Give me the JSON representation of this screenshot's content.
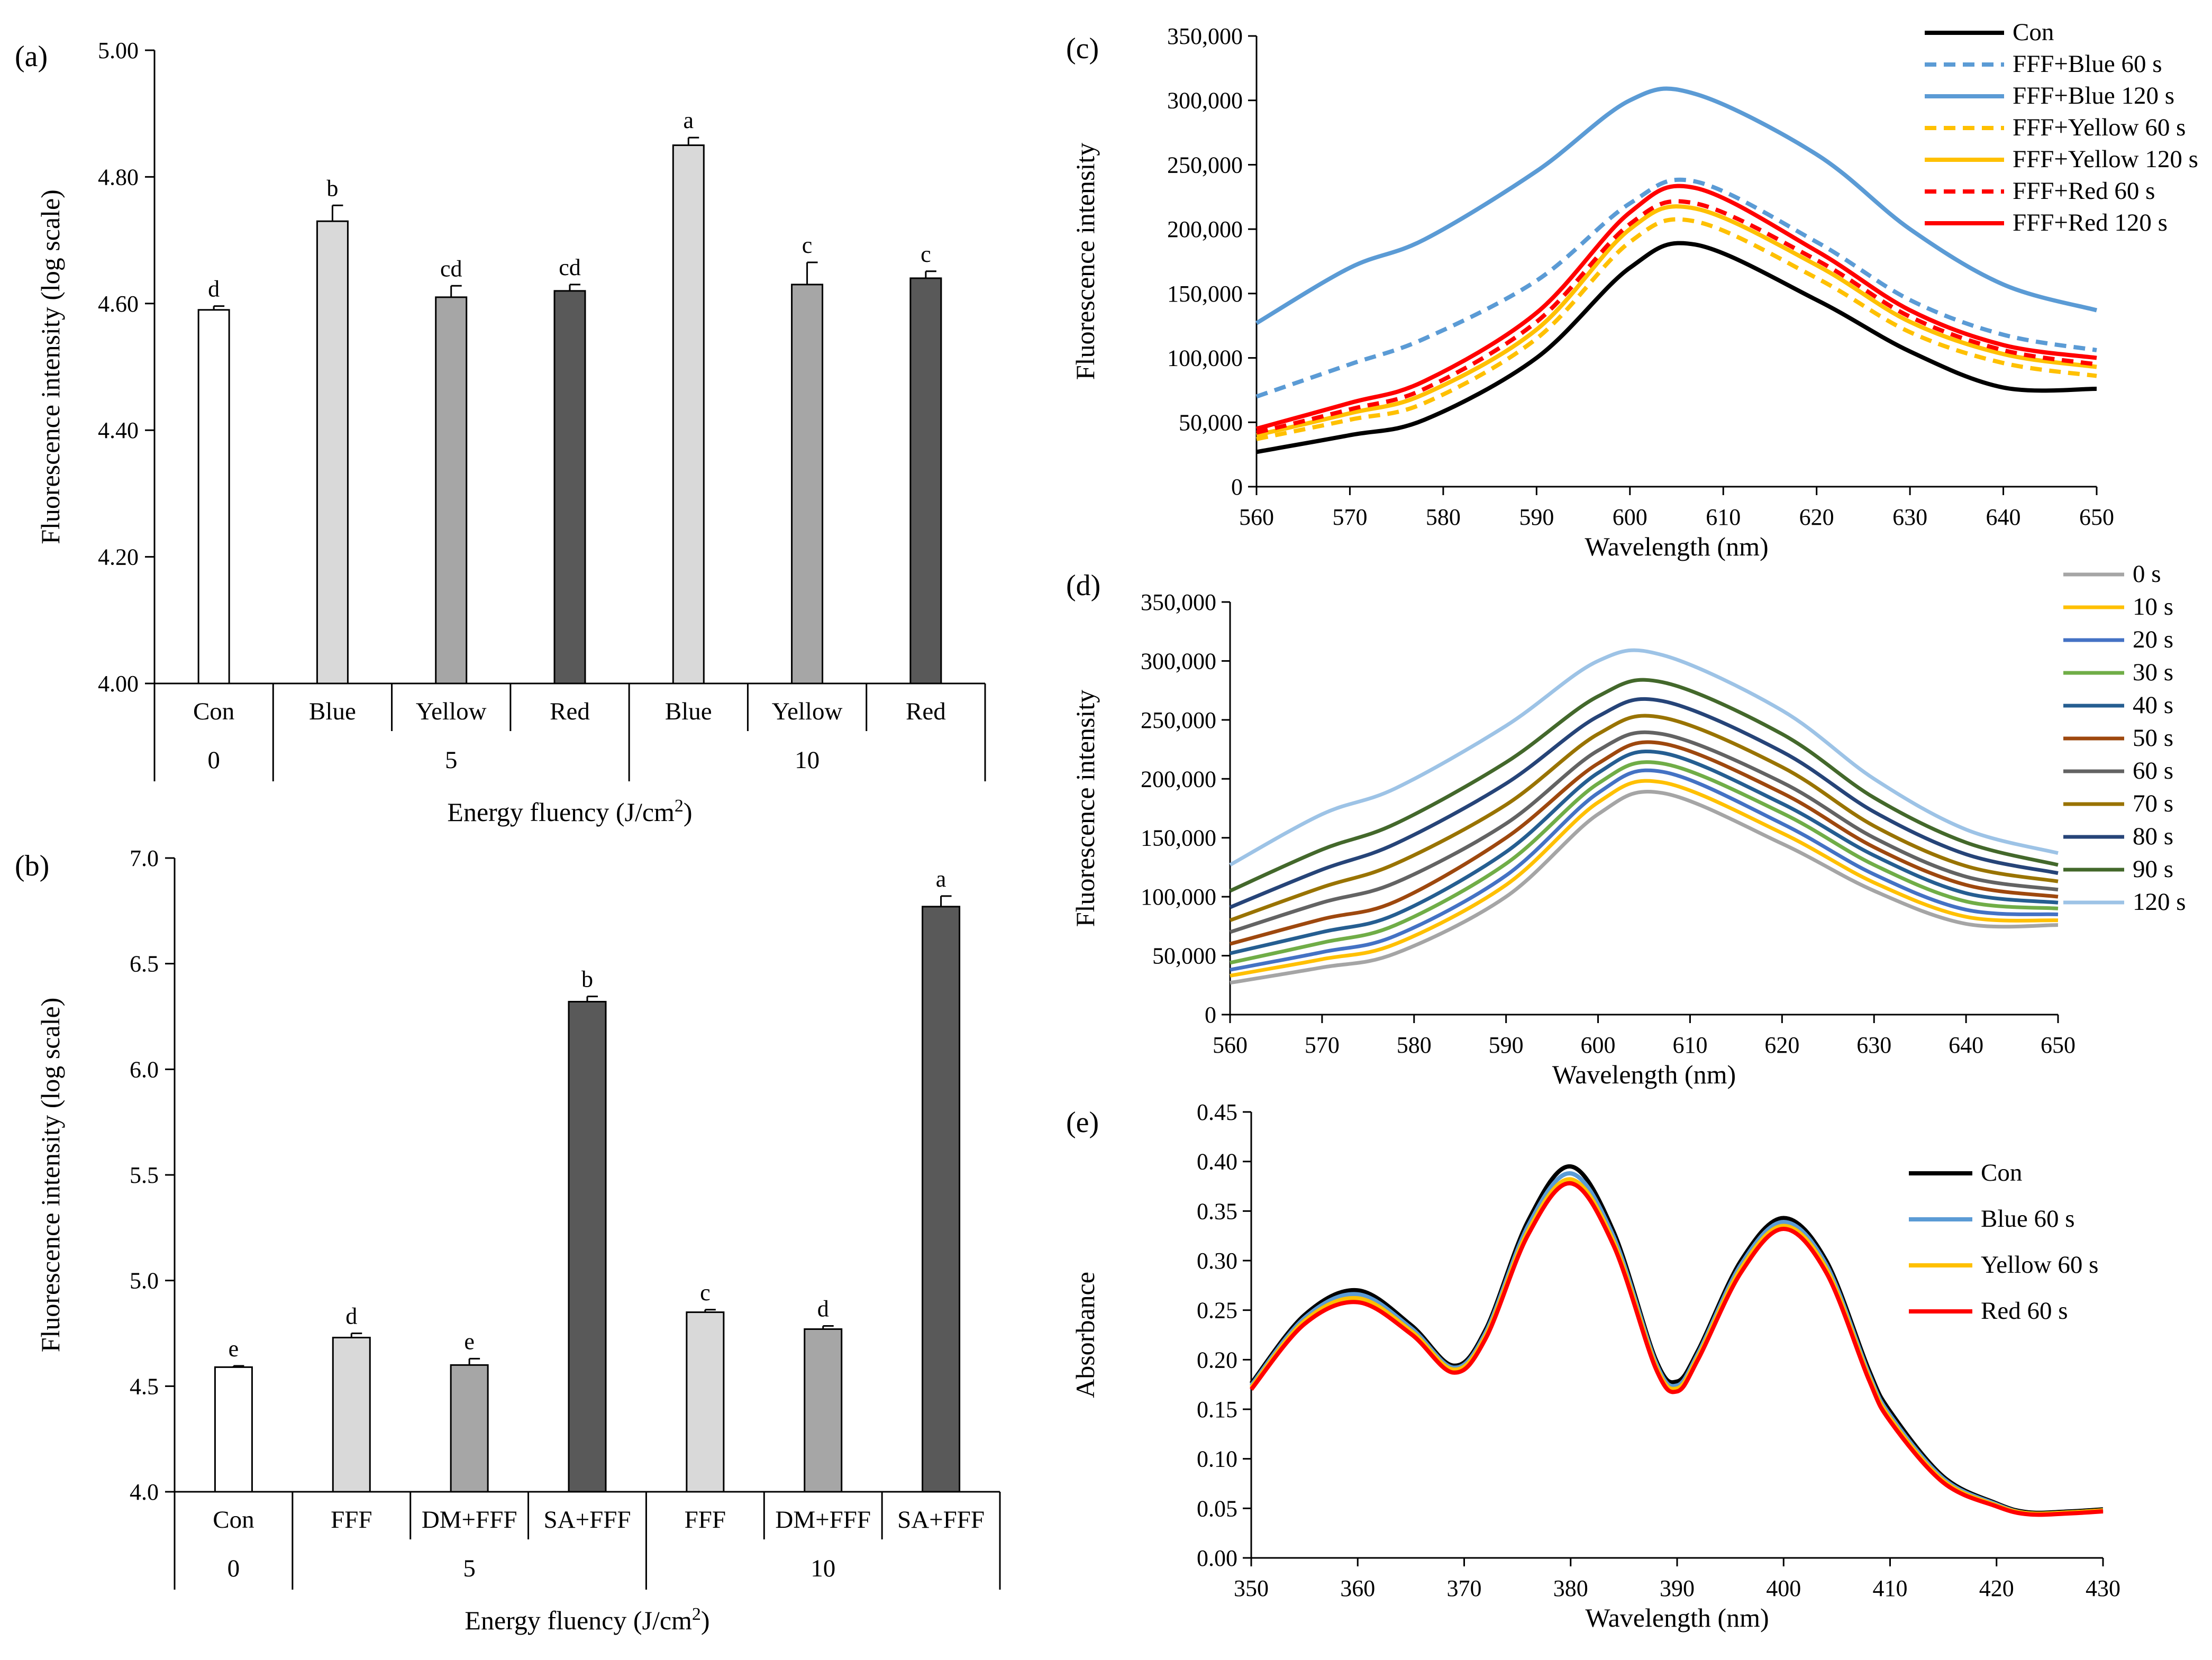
{
  "chart_data": [
    {
      "panel": "(a)",
      "type": "bar",
      "ylabel": "Fluorescence intensity (log scale)",
      "xlabel_prefix": "Energy fluency (J/cm",
      "xlabel_sup": "2",
      "xlabel_suffix": ")",
      "ylim": [
        4.0,
        5.0
      ],
      "yticks": [
        "4.00",
        "4.20",
        "4.40",
        "4.60",
        "4.80",
        "5.00"
      ],
      "categories": [
        "Con",
        "Blue",
        "Yellow",
        "Red",
        "Blue",
        "Yellow",
        "Red"
      ],
      "values": [
        4.59,
        4.73,
        4.61,
        4.62,
        4.85,
        4.63,
        4.64
      ],
      "errors": [
        0.006,
        0.025,
        0.018,
        0.01,
        0.012,
        0.035,
        0.011
      ],
      "letters": [
        "d",
        "b",
        "cd",
        "cd",
        "a",
        "c",
        "c"
      ],
      "colors": [
        "#ffffff",
        "#d9d9d9",
        "#a6a6a6",
        "#595959",
        "#d9d9d9",
        "#a6a6a6",
        "#595959"
      ],
      "groups": [
        {
          "label": "0",
          "from": 0,
          "to": 0
        },
        {
          "label": "5",
          "from": 1,
          "to": 3
        },
        {
          "label": "10",
          "from": 4,
          "to": 6
        }
      ]
    },
    {
      "panel": "(b)",
      "type": "bar",
      "ylabel": "Fluorescence intensity (log scale)",
      "xlabel_prefix": "Energy fluency (J/cm",
      "xlabel_sup": "2",
      "xlabel_suffix": ")",
      "ylim": [
        4.0,
        7.0
      ],
      "yticks": [
        "4.0",
        "4.5",
        "5.0",
        "5.5",
        "6.0",
        "6.5",
        "7.0"
      ],
      "categories": [
        "Con",
        "FFF",
        "DM+FFF",
        "SA+FFF",
        "FFF",
        "DM+FFF",
        "SA+FFF"
      ],
      "values": [
        4.59,
        4.73,
        4.6,
        6.32,
        4.85,
        4.77,
        6.77
      ],
      "errors": [
        0.006,
        0.02,
        0.03,
        0.025,
        0.012,
        0.015,
        0.05
      ],
      "letters": [
        "e",
        "d",
        "e",
        "b",
        "c",
        "d",
        "a"
      ],
      "colors": [
        "#ffffff",
        "#d9d9d9",
        "#a6a6a6",
        "#595959",
        "#d9d9d9",
        "#a6a6a6",
        "#595959"
      ],
      "groups": [
        {
          "label": "0",
          "from": 0,
          "to": 0
        },
        {
          "label": "5",
          "from": 1,
          "to": 3
        },
        {
          "label": "10",
          "from": 4,
          "to": 6
        }
      ]
    },
    {
      "panel": "(c)",
      "type": "line",
      "xlabel": "Wavelength (nm)",
      "ylabel": "Fluorescence intensity",
      "xlim": [
        560,
        650
      ],
      "ylim": [
        0,
        350000
      ],
      "xticks": [
        "560",
        "570",
        "580",
        "590",
        "600",
        "610",
        "620",
        "630",
        "640",
        "650"
      ],
      "yticks": [
        "0",
        "50,000",
        "100,000",
        "150,000",
        "200,000",
        "250,000",
        "300,000",
        "350,000"
      ],
      "x": [
        560,
        570,
        578,
        590,
        600,
        607,
        620,
        630,
        640,
        650
      ],
      "series": [
        {
          "name": "Con",
          "color": "#000000",
          "dash": false,
          "values": [
            27000,
            40000,
            52000,
            100000,
            170000,
            188000,
            145000,
            105000,
            77000,
            76000
          ]
        },
        {
          "name": "FFF+Blue 60 s",
          "color": "#5b9bd5",
          "dash": true,
          "values": [
            70000,
            95000,
            115000,
            160000,
            220000,
            237000,
            190000,
            145000,
            118000,
            106000
          ]
        },
        {
          "name": "FFF+Blue 120 s",
          "color": "#5b9bd5",
          "dash": false,
          "values": [
            127000,
            170000,
            192000,
            245000,
            300000,
            305000,
            258000,
            200000,
            157000,
            137000
          ]
        },
        {
          "name": "FFF+Yellow 60 s",
          "color": "#ffc000",
          "dash": true,
          "values": [
            37000,
            52000,
            65000,
            115000,
            190000,
            206000,
            162000,
            120000,
            96000,
            86000
          ]
        },
        {
          "name": "FFF+Yellow 120 s",
          "color": "#ffc000",
          "dash": false,
          "values": [
            40000,
            57000,
            72000,
            122000,
            200000,
            216000,
            172000,
            128000,
            103000,
            93000
          ]
        },
        {
          "name": "FFF+Red 60 s",
          "color": "#ff0000",
          "dash": true,
          "values": [
            42000,
            60000,
            76000,
            128000,
            204000,
            220000,
            176000,
            132000,
            106000,
            95000
          ]
        },
        {
          "name": "FFF+Red 120 s",
          "color": "#ff0000",
          "dash": false,
          "values": [
            45000,
            65000,
            82000,
            135000,
            213000,
            232000,
            183000,
            137000,
            110000,
            100000
          ]
        }
      ]
    },
    {
      "panel": "(d)",
      "type": "line",
      "xlabel": "Wavelength (nm)",
      "ylabel": "Fluorescence intensity",
      "xlim": [
        560,
        650
      ],
      "ylim": [
        0,
        350000
      ],
      "xticks": [
        "560",
        "570",
        "580",
        "590",
        "600",
        "610",
        "620",
        "630",
        "640",
        "650"
      ],
      "yticks": [
        "0",
        "50,000",
        "100,000",
        "150,000",
        "200,000",
        "250,000",
        "300,000",
        "350,000"
      ],
      "x": [
        560,
        570,
        578,
        590,
        600,
        607,
        620,
        630,
        640,
        650
      ],
      "series": [
        {
          "name": "0 s",
          "color": "#a5a5a5",
          "values": [
            27000,
            40000,
            52000,
            100000,
            170000,
            188000,
            145000,
            105000,
            77000,
            76000
          ]
        },
        {
          "name": "10 s",
          "color": "#ffc000",
          "values": [
            33000,
            47000,
            60000,
            110000,
            180000,
            197000,
            154000,
            112000,
            83000,
            80000
          ]
        },
        {
          "name": "20 s",
          "color": "#4472c4",
          "values": [
            38000,
            53000,
            67000,
            118000,
            188000,
            206000,
            162000,
            119000,
            89000,
            85000
          ]
        },
        {
          "name": "30 s",
          "color": "#70ad47",
          "values": [
            44000,
            61000,
            76000,
            128000,
            196000,
            213000,
            171000,
            127000,
            96000,
            90000
          ]
        },
        {
          "name": "40 s",
          "color": "#255e91",
          "values": [
            52000,
            70000,
            85000,
            138000,
            205000,
            222000,
            179000,
            135000,
            103000,
            95000
          ]
        },
        {
          "name": "50 s",
          "color": "#9e480e",
          "values": [
            60000,
            81000,
            96000,
            150000,
            213000,
            230000,
            188000,
            142000,
            110000,
            100000
          ]
        },
        {
          "name": "60 s",
          "color": "#636363",
          "values": [
            70000,
            95000,
            112000,
            162000,
            224000,
            238000,
            197000,
            150000,
            117000,
            106000
          ]
        },
        {
          "name": "70 s",
          "color": "#997300",
          "values": [
            80000,
            108000,
            128000,
            178000,
            238000,
            252000,
            210000,
            160000,
            126000,
            113000
          ]
        },
        {
          "name": "80 s",
          "color": "#264478",
          "values": [
            91000,
            123000,
            145000,
            196000,
            253000,
            266000,
            223000,
            172000,
            136000,
            120000
          ]
        },
        {
          "name": "90 s",
          "color": "#43682b",
          "values": [
            105000,
            140000,
            162000,
            214000,
            270000,
            282000,
            238000,
            184000,
            146000,
            127000
          ]
        },
        {
          "name": "120 s",
          "color": "#9dc3e6",
          "values": [
            127000,
            170000,
            192000,
            245000,
            300000,
            305000,
            258000,
            200000,
            157000,
            137000
          ]
        }
      ]
    },
    {
      "panel": "(e)",
      "type": "line",
      "xlabel": "Wavelength (nm)",
      "ylabel": "Absorbance",
      "xlim": [
        350,
        430
      ],
      "ylim": [
        0,
        0.45
      ],
      "xticks": [
        "350",
        "360",
        "370",
        "380",
        "390",
        "400",
        "410",
        "420",
        "430"
      ],
      "yticks": [
        "0.00",
        "0.05",
        "0.10",
        "0.15",
        "0.20",
        "0.25",
        "0.30",
        "0.35",
        "0.40",
        "0.45"
      ],
      "x": [
        350,
        355,
        360,
        365,
        369,
        372,
        376,
        380,
        384,
        388,
        390,
        392,
        396,
        400,
        404,
        408,
        410,
        415,
        420,
        423,
        427,
        430
      ],
      "series": [
        {
          "name": "Con",
          "color": "#000000",
          "values": [
            0.176,
            0.245,
            0.27,
            0.235,
            0.194,
            0.23,
            0.34,
            0.395,
            0.33,
            0.2,
            0.178,
            0.21,
            0.3,
            0.343,
            0.3,
            0.19,
            0.148,
            0.082,
            0.055,
            0.046,
            0.047,
            0.049
          ]
        },
        {
          "name": "Blue 60 s",
          "color": "#5b9bd5",
          "values": [
            0.174,
            0.242,
            0.266,
            0.232,
            0.192,
            0.227,
            0.335,
            0.388,
            0.325,
            0.197,
            0.174,
            0.207,
            0.296,
            0.339,
            0.296,
            0.186,
            0.144,
            0.08,
            0.054,
            0.045,
            0.046,
            0.048
          ]
        },
        {
          "name": "Yellow 60 s",
          "color": "#ffc000",
          "values": [
            0.172,
            0.239,
            0.262,
            0.229,
            0.19,
            0.224,
            0.33,
            0.382,
            0.32,
            0.194,
            0.171,
            0.204,
            0.292,
            0.335,
            0.292,
            0.183,
            0.141,
            0.078,
            0.053,
            0.045,
            0.046,
            0.048
          ]
        },
        {
          "name": "Red 60 s",
          "color": "#ff0000",
          "values": [
            0.17,
            0.236,
            0.258,
            0.226,
            0.187,
            0.221,
            0.326,
            0.378,
            0.316,
            0.191,
            0.168,
            0.201,
            0.288,
            0.332,
            0.288,
            0.18,
            0.138,
            0.076,
            0.052,
            0.044,
            0.045,
            0.047
          ]
        }
      ]
    }
  ]
}
